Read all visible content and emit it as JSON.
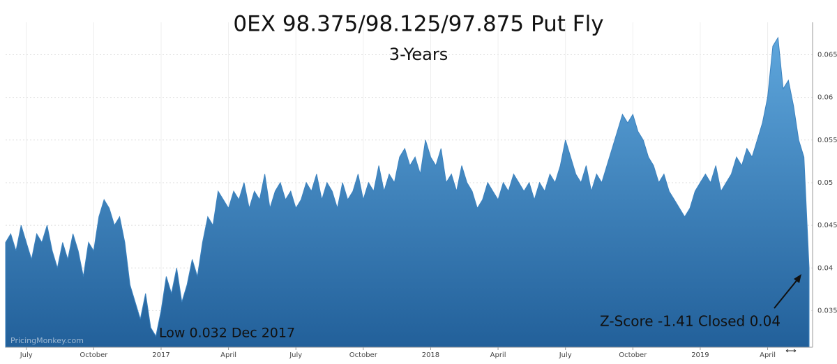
{
  "chart_data": {
    "type": "area",
    "title": "0EX 98.375/98.125/97.875 Put Fly",
    "subtitle": "3-Years",
    "annotations": [
      "Low 0.032 Dec 2017",
      "Z-Score -1.41 Closed 0.04"
    ],
    "watermark": "PricingMonkey.com",
    "color": "#3b82bf",
    "grid": true,
    "categories": [
      null,
      null,
      null,
      null,
      "July",
      null,
      null,
      null,
      null,
      null,
      null,
      null,
      null,
      null,
      null,
      null,
      null,
      "October",
      null,
      null,
      null,
      null,
      null,
      null,
      null,
      null,
      null,
      null,
      null,
      null,
      "2017",
      null,
      null,
      null,
      null,
      null,
      null,
      null,
      null,
      null,
      null,
      null,
      null,
      "April",
      null,
      null,
      null,
      null,
      null,
      null,
      null,
      null,
      null,
      null,
      null,
      null,
      "July",
      null,
      null,
      null,
      null,
      null,
      null,
      null,
      null,
      null,
      null,
      null,
      null,
      "October",
      null,
      null,
      null,
      null,
      null,
      null,
      null,
      null,
      null,
      null,
      null,
      null,
      "2018",
      null,
      null,
      null,
      null,
      null,
      null,
      null,
      null,
      null,
      null,
      null,
      null,
      "April",
      null,
      null,
      null,
      null,
      null,
      null,
      null,
      null,
      null,
      null,
      null,
      null,
      "July",
      null,
      null,
      null,
      null,
      null,
      null,
      null,
      null,
      null,
      null,
      null,
      null,
      "October",
      null,
      null,
      null,
      null,
      null,
      null,
      null,
      null,
      null,
      null,
      null,
      null,
      "2019",
      null,
      null,
      null,
      null,
      null,
      null,
      null,
      null,
      null,
      null,
      null,
      null,
      "April",
      null,
      null,
      null,
      null,
      null,
      null,
      null,
      null
    ],
    "values": [
      0.043,
      0.044,
      0.042,
      0.045,
      0.043,
      0.041,
      0.044,
      0.043,
      0.045,
      0.042,
      0.04,
      0.043,
      0.041,
      0.044,
      0.042,
      0.039,
      0.043,
      0.042,
      0.046,
      0.048,
      0.047,
      0.045,
      0.046,
      0.043,
      0.038,
      0.036,
      0.034,
      0.037,
      0.033,
      0.032,
      0.035,
      0.039,
      0.037,
      0.04,
      0.036,
      0.038,
      0.041,
      0.039,
      0.043,
      0.046,
      0.045,
      0.049,
      0.048,
      0.047,
      0.049,
      0.048,
      0.05,
      0.047,
      0.049,
      0.048,
      0.051,
      0.047,
      0.049,
      0.05,
      0.048,
      0.049,
      0.047,
      0.048,
      0.05,
      0.049,
      0.051,
      0.048,
      0.05,
      0.049,
      0.047,
      0.05,
      0.048,
      0.049,
      0.051,
      0.048,
      0.05,
      0.049,
      0.052,
      0.049,
      0.051,
      0.05,
      0.053,
      0.054,
      0.052,
      0.053,
      0.051,
      0.055,
      0.053,
      0.052,
      0.054,
      0.05,
      0.051,
      0.049,
      0.052,
      0.05,
      0.049,
      0.047,
      0.048,
      0.05,
      0.049,
      0.048,
      0.05,
      0.049,
      0.051,
      0.05,
      0.049,
      0.05,
      0.048,
      0.05,
      0.049,
      0.051,
      0.05,
      0.052,
      0.055,
      0.053,
      0.051,
      0.05,
      0.052,
      0.049,
      0.051,
      0.05,
      0.052,
      0.054,
      0.056,
      0.058,
      0.057,
      0.058,
      0.056,
      0.055,
      0.053,
      0.052,
      0.05,
      0.051,
      0.049,
      0.048,
      0.047,
      0.046,
      0.047,
      0.049,
      0.05,
      0.051,
      0.05,
      0.052,
      0.049,
      0.05,
      0.051,
      0.053,
      0.052,
      0.054,
      0.053,
      0.055,
      0.057,
      0.06,
      0.066,
      0.067,
      0.061,
      0.062,
      0.059,
      0.055,
      0.053,
      0.04
    ],
    "ylim": [
      0.0307,
      0.0688
    ],
    "yticks": [
      0.035,
      0.04,
      0.045,
      0.05,
      0.055,
      0.06,
      0.065
    ]
  }
}
